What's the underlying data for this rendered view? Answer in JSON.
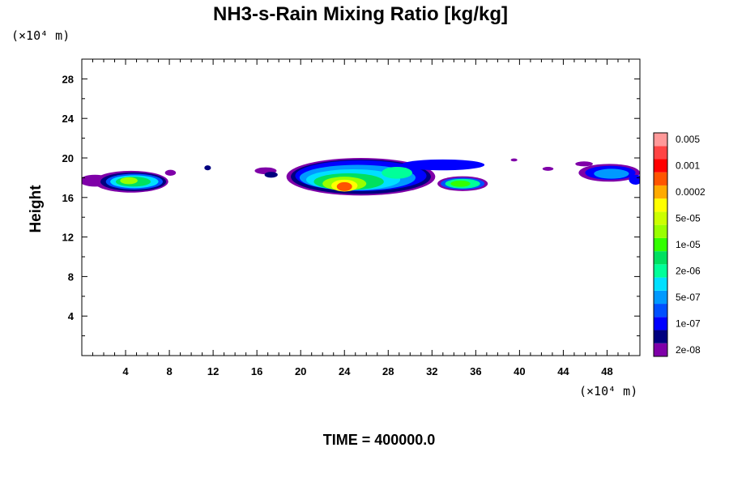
{
  "chart_data": {
    "type": "heatmap",
    "title": "NH3-s-Rain Mixing Ratio [kg/kg]",
    "ylabel": "Height",
    "xlabel": "",
    "x_unit_label": "(×10⁴ m)",
    "y_unit_label": "(×10⁴ m)",
    "time_label": "TIME = 400000.0",
    "xlim": [
      0,
      51
    ],
    "ylim": [
      0,
      30
    ],
    "x_ticks": [
      4,
      8,
      12,
      16,
      20,
      24,
      28,
      32,
      36,
      40,
      44,
      48
    ],
    "x_tick_labels": [
      "4",
      "8",
      "12",
      "16",
      "20",
      "24",
      "28",
      "32",
      "36",
      "40",
      "44",
      "48"
    ],
    "y_ticks": [
      4,
      8,
      12,
      16,
      20,
      24,
      28
    ],
    "y_tick_labels": [
      "4",
      "8",
      "12",
      "16",
      "20",
      "24",
      "28"
    ],
    "colorbar": {
      "colors": [
        "#7f00a8",
        "#00007f",
        "#0000ff",
        "#0050ff",
        "#0099ff",
        "#00e0ff",
        "#00ff99",
        "#00e060",
        "#33ff00",
        "#99ff00",
        "#ccff00",
        "#ffff00",
        "#ffaa00",
        "#ff5500",
        "#ff0000",
        "#ff4444",
        "#ff9999"
      ],
      "labels": [
        "2e-08",
        "1e-07",
        "5e-07",
        "2e-06",
        "1e-05",
        "5e-05",
        "0.0002",
        "0.001",
        "0.005"
      ]
    },
    "features": [
      {
        "x": 1.2,
        "y": 17.7,
        "rx": 1.4,
        "ry": 0.6,
        "level": 0
      },
      {
        "x": 4.5,
        "y": 17.6,
        "rx": 3.4,
        "ry": 1.1,
        "level": 0
      },
      {
        "x": 4.7,
        "y": 17.6,
        "rx": 3.0,
        "ry": 0.95,
        "level": 1
      },
      {
        "x": 4.8,
        "y": 17.6,
        "rx": 2.6,
        "ry": 0.8,
        "level": 3
      },
      {
        "x": 4.8,
        "y": 17.6,
        "rx": 2.2,
        "ry": 0.65,
        "level": 5
      },
      {
        "x": 4.7,
        "y": 17.6,
        "rx": 1.6,
        "ry": 0.5,
        "level": 7
      },
      {
        "x": 4.3,
        "y": 17.7,
        "rx": 0.8,
        "ry": 0.35,
        "level": 9
      },
      {
        "x": 8.1,
        "y": 18.5,
        "rx": 0.5,
        "ry": 0.3,
        "level": 0
      },
      {
        "x": 11.5,
        "y": 19.0,
        "rx": 0.3,
        "ry": 0.25,
        "level": 1
      },
      {
        "x": 16.8,
        "y": 18.7,
        "rx": 1.0,
        "ry": 0.35,
        "level": 0
      },
      {
        "x": 17.3,
        "y": 18.3,
        "rx": 0.6,
        "ry": 0.3,
        "level": 1
      },
      {
        "x": 25.5,
        "y": 18.1,
        "rx": 6.8,
        "ry": 1.9,
        "level": 0
      },
      {
        "x": 25.5,
        "y": 18.1,
        "rx": 6.4,
        "ry": 1.75,
        "level": 1
      },
      {
        "x": 25.5,
        "y": 18.2,
        "rx": 6.0,
        "ry": 1.55,
        "level": 2
      },
      {
        "x": 25.2,
        "y": 18.0,
        "rx": 5.3,
        "ry": 1.3,
        "level": 4
      },
      {
        "x": 24.8,
        "y": 17.8,
        "rx": 4.3,
        "ry": 1.05,
        "level": 5
      },
      {
        "x": 24.4,
        "y": 17.6,
        "rx": 3.2,
        "ry": 0.85,
        "level": 7
      },
      {
        "x": 24.0,
        "y": 17.4,
        "rx": 2.0,
        "ry": 0.7,
        "level": 9
      },
      {
        "x": 24.0,
        "y": 17.2,
        "rx": 1.2,
        "ry": 0.6,
        "level": 11
      },
      {
        "x": 24.0,
        "y": 17.1,
        "rx": 0.7,
        "ry": 0.45,
        "level": 13
      },
      {
        "x": 28.8,
        "y": 18.5,
        "rx": 1.4,
        "ry": 0.6,
        "level": 6
      },
      {
        "x": 33.0,
        "y": 19.3,
        "rx": 3.8,
        "ry": 0.55,
        "level": 2
      },
      {
        "x": 34.8,
        "y": 17.4,
        "rx": 2.3,
        "ry": 0.75,
        "level": 0
      },
      {
        "x": 34.8,
        "y": 17.4,
        "rx": 2.0,
        "ry": 0.6,
        "level": 3
      },
      {
        "x": 34.8,
        "y": 17.4,
        "rx": 1.6,
        "ry": 0.48,
        "level": 6
      },
      {
        "x": 34.6,
        "y": 17.4,
        "rx": 0.9,
        "ry": 0.32,
        "level": 8
      },
      {
        "x": 39.5,
        "y": 19.8,
        "rx": 0.3,
        "ry": 0.15,
        "level": 0
      },
      {
        "x": 42.6,
        "y": 18.9,
        "rx": 0.5,
        "ry": 0.2,
        "level": 0
      },
      {
        "x": 45.9,
        "y": 19.4,
        "rx": 0.8,
        "ry": 0.25,
        "level": 0
      },
      {
        "x": 48.2,
        "y": 18.5,
        "rx": 2.8,
        "ry": 0.9,
        "level": 0
      },
      {
        "x": 48.3,
        "y": 18.5,
        "rx": 2.3,
        "ry": 0.7,
        "level": 2
      },
      {
        "x": 48.4,
        "y": 18.4,
        "rx": 1.6,
        "ry": 0.5,
        "level": 4
      },
      {
        "x": 50.6,
        "y": 17.8,
        "rx": 0.6,
        "ry": 0.5,
        "level": 2
      }
    ]
  }
}
